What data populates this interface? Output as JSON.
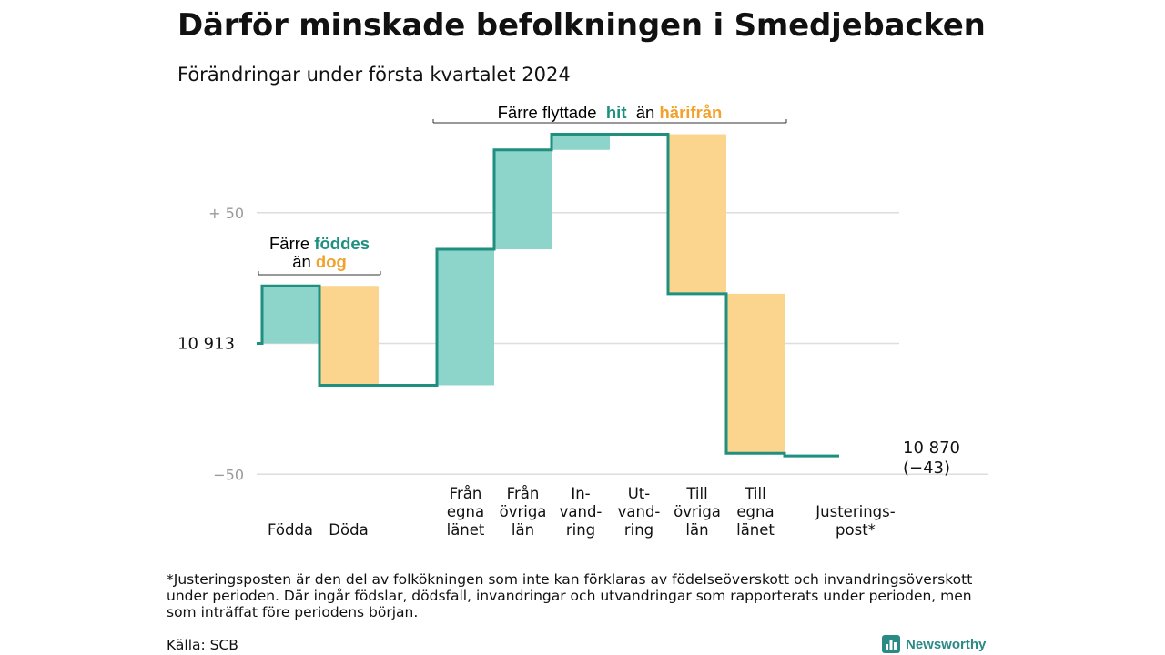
{
  "header": {
    "title": "Därför minskade befolkningen i Smedjebacken",
    "subtitle": "Förändringar under första kvartalet 2024"
  },
  "colors": {
    "increase": "#8dd4cb",
    "decrease": "#fbd48d",
    "line": "#1f8f7f",
    "teal_text": "#1f8f7f",
    "orange_text": "#f2a22c",
    "grid": "#dddddd",
    "axis_text": "#999999"
  },
  "chart_data": {
    "type": "waterfall",
    "baseline": 0,
    "baseline_label": "10  913",
    "y_ticks": [
      {
        "value": 50,
        "label": "+  50"
      },
      {
        "value": -50,
        "label": "−50"
      }
    ],
    "ylim": [
      -52,
      82
    ],
    "steps": [
      {
        "key": "fodda",
        "label": [
          "Födda"
        ],
        "delta": 22,
        "kind": "increase"
      },
      {
        "key": "doda",
        "label": [
          "Döda"
        ],
        "delta": -38,
        "kind": "decrease"
      },
      {
        "key": "fran_egna_lanet",
        "label": [
          "Från",
          "egna",
          "länet"
        ],
        "delta": 52,
        "kind": "increase"
      },
      {
        "key": "fran_ovriga_lan",
        "label": [
          "Från",
          "övriga",
          "län"
        ],
        "delta": 38,
        "kind": "increase"
      },
      {
        "key": "invandring",
        "label": [
          "In-",
          "vand-",
          "ring"
        ],
        "delta": 6,
        "kind": "increase"
      },
      {
        "key": "utvandring",
        "label": [
          "Ut-",
          "vand-",
          "ring"
        ],
        "delta": 0,
        "kind": "neutral"
      },
      {
        "key": "till_ovriga_lan",
        "label": [
          "Till",
          "övriga",
          "län"
        ],
        "delta": -61,
        "kind": "decrease"
      },
      {
        "key": "till_egna_lanet",
        "label": [
          "Till",
          "egna",
          "länet"
        ],
        "delta": -61,
        "kind": "decrease"
      },
      {
        "key": "justeringspost",
        "label": [
          "Justerings-",
          "post*"
        ],
        "delta": -1,
        "kind": "decrease"
      }
    ],
    "end_value_label": "10 870",
    "end_change_label": "(−43)",
    "annotations": [
      {
        "key": "births_vs_deaths",
        "parts": [
          "Färre",
          "föddes",
          "än",
          "dog"
        ],
        "span": [
          "fodda",
          "doda"
        ]
      },
      {
        "key": "moved_in_vs_out",
        "parts": [
          "Färre flyttade",
          "hit",
          "än",
          "härifrån"
        ],
        "span": [
          "fran_egna_lanet",
          "till_egna_lanet"
        ]
      }
    ]
  },
  "footer": {
    "footnote": "*Justeringsposten är den del av folkökningen som inte kan förklaras av födelseöverskott och invandringsöverskott under perioden. Där ingår födslar, dödsfall, invandringar och utvandringar som rapporterats under perioden, men som inträffat före periodens början.",
    "source": "Källa: SCB",
    "brand_name": "Newsworthy",
    "brand_icon": "bar-chart-icon"
  }
}
